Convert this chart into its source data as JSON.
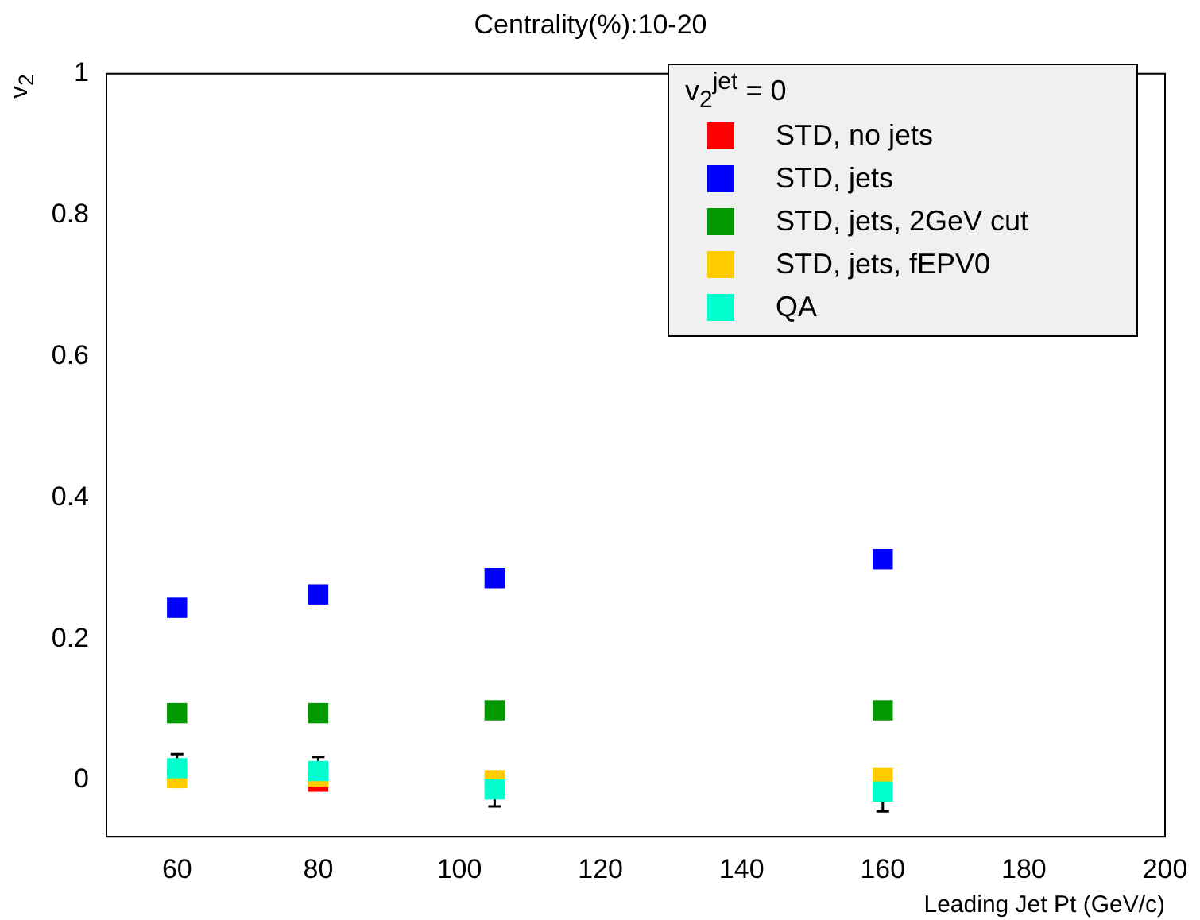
{
  "chart_data": {
    "type": "scatter",
    "title": "Centrality(%):10-20",
    "xlabel": "Leading Jet Pt (GeV/c)",
    "ylabel": "v$_{2}$",
    "legend_title": "v$_{2}$$^{jet}$ = 0",
    "x": [
      60,
      80,
      105,
      160
    ],
    "series": [
      {
        "name": "STD, no jets",
        "color": "#ff0000",
        "values": [
          null,
          -0.002,
          null,
          null
        ]
      },
      {
        "name": "STD, jets",
        "color": "#0000ff",
        "values": [
          0.244,
          0.263,
          0.286,
          0.313
        ]
      },
      {
        "name": "STD, jets, 2GeV cut",
        "color": "#009900",
        "values": [
          0.095,
          0.095,
          0.099,
          0.099
        ]
      },
      {
        "name": "STD, jets, fEPV0",
        "color": "#ffcc00",
        "values": [
          0.003,
          0.005,
          0.0,
          0.003
        ]
      },
      {
        "name": "QA",
        "color": "#00ffcc",
        "values": [
          0.017,
          0.013,
          -0.013,
          -0.016
        ],
        "errors": [
          0.02,
          0.02,
          0.024,
          0.028
        ]
      }
    ],
    "xlim": [
      50,
      200
    ],
    "xticks": [
      60,
      80,
      100,
      120,
      140,
      160,
      180,
      200
    ],
    "ylim": [
      -0.08,
      1
    ],
    "yticks": [
      0,
      0.2,
      0.4,
      0.6,
      0.8,
      1
    ],
    "grid": false,
    "legend": "top right",
    "marker": "square"
  }
}
